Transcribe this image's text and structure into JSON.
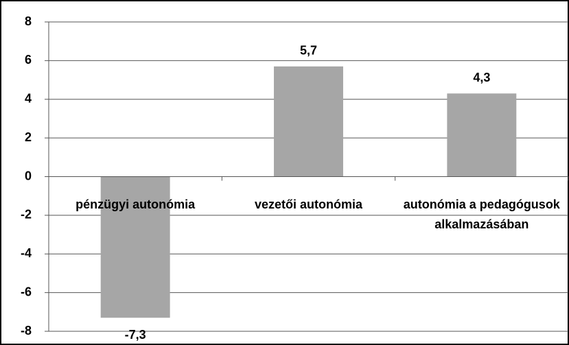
{
  "chart_data": {
    "type": "bar",
    "categories": [
      "pénzügyi autonómia",
      "vezetői autonómia",
      "autonómia a pedagógusok alkalmazásában"
    ],
    "values": [
      -7.3,
      5.7,
      4.3
    ],
    "value_labels": [
      "-7,3",
      "5,7",
      "4,3"
    ],
    "color": "#a6a6a6",
    "ylim": [
      -8,
      8
    ],
    "yticks": [
      -8,
      -6,
      -4,
      -2,
      0,
      2,
      4,
      6,
      8
    ],
    "grid": true
  }
}
